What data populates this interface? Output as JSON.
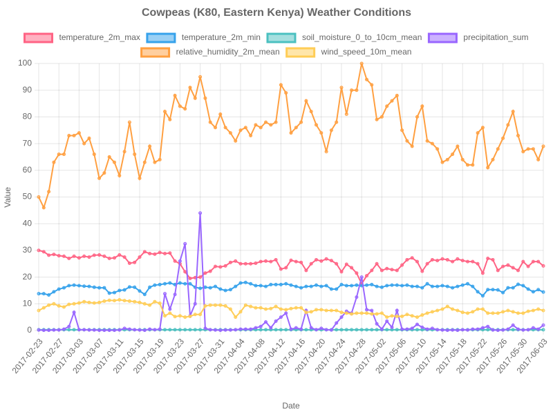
{
  "chart_data": {
    "type": "line",
    "title": "Cowpeas (K80, Eastern Kenya) Weather Conditions",
    "x_label": "Date",
    "y_label": "Value",
    "ylim": [
      0,
      100
    ],
    "yticks": [
      0,
      10,
      20,
      30,
      40,
      50,
      60,
      70,
      80,
      90,
      100
    ],
    "grid": true,
    "legend": "top",
    "categories": [
      "2017-02-23",
      null,
      null,
      null,
      "2017-02-27",
      null,
      null,
      null,
      "2017-03-03",
      null,
      null,
      null,
      "2017-03-07",
      null,
      null,
      null,
      "2017-03-11",
      null,
      null,
      null,
      "2017-03-15",
      null,
      null,
      null,
      "2017-03-19",
      null,
      null,
      null,
      "2017-03-23",
      null,
      null,
      null,
      "2017-03-27",
      null,
      null,
      null,
      "2017-03-31",
      null,
      null,
      null,
      "2017-04-04",
      null,
      null,
      null,
      "2017-04-08",
      null,
      null,
      null,
      "2017-04-12",
      null,
      null,
      null,
      "2017-04-16",
      null,
      null,
      null,
      "2017-04-20",
      null,
      null,
      null,
      "2017-04-24",
      null,
      null,
      null,
      "2017-04-28",
      null,
      null,
      null,
      "2017-05-02",
      null,
      null,
      null,
      "2017-05-06",
      null,
      null,
      null,
      "2017-05-10",
      null,
      null,
      null,
      "2017-05-14",
      null,
      null,
      null,
      "2017-05-18",
      null,
      null,
      null,
      "2017-05-22",
      null,
      null,
      null,
      "2017-05-26",
      null,
      null,
      null,
      "2017-05-30",
      null,
      null,
      null,
      "2017-06-03"
    ],
    "series": [
      {
        "name": "temperature_2m_max",
        "color": "rgb(255, 99, 132)",
        "values": [
          30,
          29.5,
          28.2,
          28.5,
          28,
          27.8,
          27,
          27.8,
          27.2,
          27.8,
          27.5,
          28.2,
          28.3,
          27.8,
          27,
          27.2,
          28.3,
          27.5,
          25.2,
          25.5,
          27.5,
          29.5,
          28.8,
          28.6,
          29.2,
          28.8,
          29,
          26,
          25,
          22,
          19.5,
          19.8,
          20,
          21.5,
          22.2,
          24,
          23.8,
          24.2,
          25.5,
          26,
          25,
          25,
          25,
          25.2,
          25.8,
          26,
          25.8,
          26.5,
          23,
          23.5,
          26.3,
          25.8,
          25.5,
          22.5,
          25,
          26.5,
          26,
          26.8,
          26.2,
          25,
          22,
          24.8,
          23.5,
          21.5,
          17.5,
          20.5,
          22.5,
          25,
          22.5,
          23.2,
          22.8,
          22.5,
          24.5,
          26.5,
          27.2,
          25.8,
          22.2,
          25,
          26.5,
          26.2,
          26.8,
          26.5,
          25.8,
          26.8,
          26.2,
          25.8,
          25.8,
          25,
          21.5,
          27,
          26.5,
          22.5,
          24,
          24.5,
          23.5,
          22.5,
          25.8,
          24,
          25.8,
          25.8,
          24.2
        ]
      },
      {
        "name": "temperature_2m_min",
        "color": "rgb(54, 162, 235)",
        "values": [
          13.8,
          13.8,
          13.3,
          14.5,
          15.5,
          16,
          16.8,
          17,
          16.8,
          16.6,
          16.5,
          16.2,
          16,
          16,
          14,
          14.2,
          15,
          15.2,
          16.3,
          16.2,
          14.8,
          13.5,
          16.2,
          17,
          17.2,
          17.5,
          17.8,
          17.2,
          17.8,
          17.5,
          17.5,
          16.2,
          15.8,
          16.2,
          16,
          16.5,
          15.5,
          15,
          15.3,
          16.5,
          17.8,
          18,
          17.5,
          16.8,
          16.8,
          16.5,
          17.2,
          17.2,
          17.2,
          17.5,
          17,
          16.5,
          16,
          16.5,
          16.5,
          17,
          16.5,
          16.8,
          15.5,
          15.5,
          17.2,
          16.8,
          16.8,
          17,
          16.8,
          17,
          17.2,
          16.5,
          16.2,
          16.8,
          17,
          17,
          16.8,
          17,
          16.5,
          16.5,
          16,
          17.5,
          16.5,
          16.5,
          16.8,
          16.5,
          16,
          16.5,
          17,
          17.5,
          16.5,
          14.5,
          13,
          15.3,
          15.3,
          15.2,
          14.2,
          16,
          16,
          17.3,
          16.8,
          15.5,
          14.5,
          15.3,
          14.4
        ]
      },
      {
        "name": "soil_moisture_0_to_10cm_mean",
        "color": "rgb(75, 192, 192)",
        "values": [
          0.3,
          0.3,
          0.3,
          0.3,
          0.3,
          0.3,
          0.3,
          0.3,
          0.3,
          0.3,
          0.3,
          0.3,
          0.3,
          0.3,
          0.3,
          0.3,
          0.3,
          0.3,
          0.3,
          0.3,
          0.3,
          0.3,
          0.3,
          0.3,
          0.3,
          0.3,
          0.3,
          0.3,
          0.3,
          0.3,
          0.3,
          0.3,
          0.3,
          0.3,
          0.3,
          0.3,
          0.3,
          0.3,
          0.3,
          0.3,
          0.3,
          0.3,
          0.3,
          0.3,
          0.3,
          0.3,
          0.3,
          0.3,
          0.3,
          0.3,
          0.3,
          0.3,
          0.3,
          0.3,
          0.3,
          0.3,
          0.3,
          0.3,
          0.3,
          0.3,
          0.3,
          0.3,
          0.3,
          0.3,
          0.3,
          0.3,
          0.3,
          0.3,
          0.3,
          0.3,
          0.3,
          0.3,
          0.3,
          0.3,
          0.3,
          0.3,
          0.3,
          0.3,
          0.3,
          0.3,
          0.3,
          0.3,
          0.3,
          0.3,
          0.3,
          0.3,
          0.3,
          0.3,
          0.3,
          0.3,
          0.3,
          0.3,
          0.3,
          0.3,
          0.3,
          0.3,
          0.3,
          0.3,
          0.3,
          0.3,
          0.3
        ]
      },
      {
        "name": "precipitation_sum",
        "color": "rgb(153, 102, 255)",
        "values": [
          0.2,
          0.1,
          0.1,
          0.2,
          0.2,
          0.5,
          1.5,
          6.8,
          0.3,
          0.3,
          0.2,
          0.2,
          0.1,
          0.1,
          0.1,
          0.1,
          0.2,
          0.8,
          0.5,
          0.3,
          0.2,
          0.1,
          0.5,
          0.3,
          0.5,
          13.8,
          8,
          13.5,
          26,
          32.5,
          5.5,
          10,
          44,
          0.8,
          0.3,
          0.2,
          0.1,
          0.2,
          0.2,
          0.3,
          0.5,
          0.5,
          0.5,
          1,
          1.5,
          3.2,
          1,
          3.5,
          5,
          6.5,
          0.5,
          1,
          0.5,
          7.5,
          1,
          0.3,
          0.8,
          0.3,
          0.2,
          2.8,
          5,
          7.2,
          6.5,
          12.5,
          20,
          7.8,
          7.5,
          2.5,
          0.5,
          3.5,
          1.2,
          7.5,
          0.5,
          0.5,
          0.8,
          2.3,
          1.2,
          0.5,
          0.8,
          0.3,
          0.2,
          0.1,
          0.2,
          0.1,
          0.3,
          0.2,
          0.5,
          0.5,
          1,
          1.5,
          0.2,
          0.1,
          0.2,
          0.5,
          2,
          0.5,
          0.2,
          0.3,
          1,
          0.5,
          2
        ]
      },
      {
        "name": "relative_humidity_2m_mean",
        "color": "rgb(255, 159, 64)",
        "values": [
          50,
          46,
          52,
          63,
          66,
          66,
          73,
          73,
          74,
          70,
          72,
          66,
          57,
          59,
          65,
          63,
          58,
          67,
          78,
          66,
          57,
          63,
          69,
          63,
          64,
          82,
          79,
          88,
          84,
          83,
          91,
          87,
          95,
          87,
          78,
          76,
          81,
          76,
          74,
          71,
          75,
          76,
          73,
          77,
          76,
          78,
          77,
          78,
          92,
          89,
          74,
          76,
          78,
          86,
          82,
          77,
          74,
          67,
          75,
          78,
          91,
          81,
          90,
          90,
          100,
          94,
          92,
          79,
          80,
          84,
          86,
          88,
          75,
          71,
          69,
          80,
          84,
          71,
          70,
          68,
          63,
          64,
          66,
          69,
          64,
          62,
          62,
          74,
          76,
          61,
          64,
          68,
          72,
          77,
          82,
          73,
          67,
          68,
          68,
          64,
          69
        ]
      },
      {
        "name": "wind_speed_10m_mean",
        "color": "rgb(255, 205, 86)",
        "values": [
          7.5,
          8.5,
          9.5,
          10,
          9.2,
          8.8,
          9.8,
          10,
          10.3,
          10.8,
          10.5,
          10.3,
          10.5,
          11,
          11.3,
          11.2,
          11.5,
          11.2,
          11,
          10.8,
          10.5,
          10,
          9.5,
          10.8,
          10.2,
          5.5,
          6.5,
          5.2,
          5.5,
          5,
          5.3,
          6,
          6,
          9.2,
          9.5,
          9.5,
          9.5,
          9.2,
          8,
          5,
          7,
          9.5,
          9,
          8.5,
          8.5,
          8,
          8.2,
          9,
          8,
          7.8,
          8.2,
          8.5,
          8.5,
          6.8,
          7,
          7.8,
          7.8,
          7.5,
          7.5,
          7.5,
          6.8,
          6.5,
          6.2,
          6.5,
          6.5,
          6.5,
          6.2,
          6.2,
          6.5,
          5,
          5.5,
          5.3,
          5.3,
          6,
          5.5,
          5,
          5.8,
          6.5,
          7,
          7.5,
          8,
          9,
          8,
          7.5,
          6.8,
          6.5,
          7,
          8,
          8,
          6.5,
          6.5,
          6.5,
          7,
          7.5,
          7,
          6.5,
          6.5,
          7.2,
          7.5,
          8,
          7.5
        ]
      }
    ]
  }
}
